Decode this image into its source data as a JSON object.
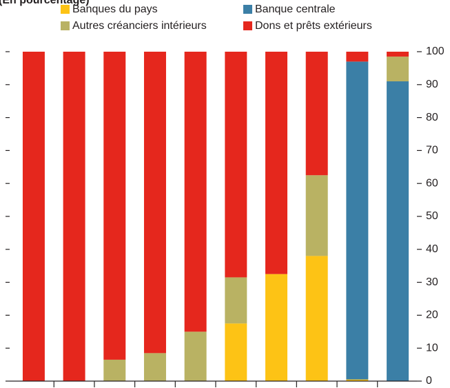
{
  "chart_data": {
    "type": "stacked_bar",
    "subtitle": "(En pourcentage)",
    "categories": [
      null,
      null,
      null,
      null,
      null,
      null,
      null,
      null,
      null,
      null
    ],
    "series": [
      {
        "name": "Banques du pays",
        "color": "#fdc315",
        "values": [
          0,
          0,
          0,
          0,
          0,
          17.5,
          32.5,
          38,
          0.5,
          0
        ]
      },
      {
        "name": "Banque centrale",
        "color": "#3b7fa6",
        "values": [
          0,
          0,
          0,
          0,
          0,
          0,
          0,
          0,
          96.5,
          91
        ]
      },
      {
        "name": "Autres créanciers intérieurs",
        "color": "#b9b263",
        "values": [
          0,
          0,
          6.5,
          8.5,
          15,
          14,
          0,
          24.5,
          0,
          7.5
        ]
      },
      {
        "name": "Dons et prêts extérieurs",
        "color": "#e5271d",
        "values": [
          100,
          100,
          93.5,
          91.5,
          85,
          68.5,
          67.5,
          37.5,
          3,
          1.5
        ]
      }
    ],
    "ylim": [
      0,
      100
    ],
    "yticks": [
      0,
      10,
      20,
      30,
      40,
      50,
      60,
      70,
      80,
      90,
      100
    ],
    "y_axis_side": "right",
    "grid": false
  }
}
